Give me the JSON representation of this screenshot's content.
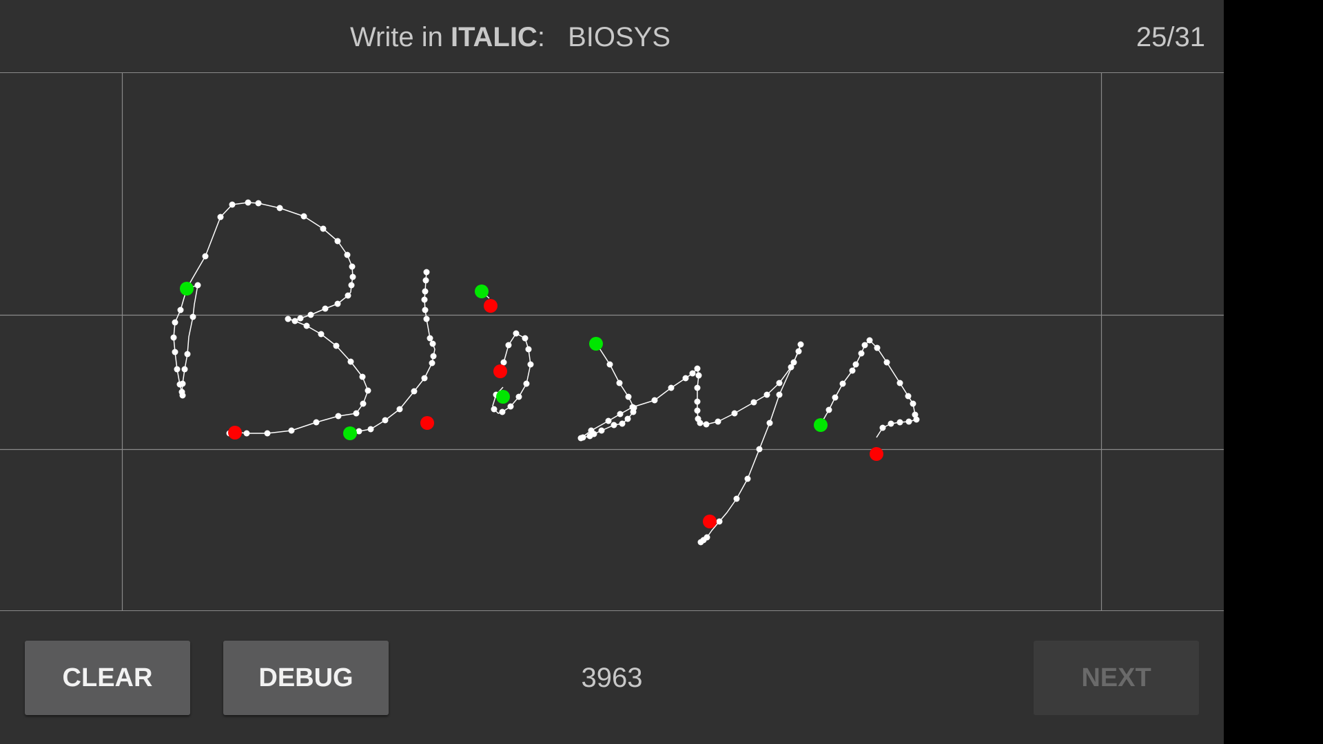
{
  "header": {
    "prompt_prefix": "Write in",
    "style_name": "ITALIC",
    "separator": ":",
    "target_word": "BIOSYS",
    "progress_label": "25/31"
  },
  "footer": {
    "clear_label": "CLEAR",
    "debug_label": "DEBUG",
    "score": "3963",
    "next_label": "NEXT",
    "next_enabled": false
  },
  "colors": {
    "background": "#303030",
    "guide_lines": "#8a8a8a",
    "ink": "#ffffff",
    "stroke_start": "#00e600",
    "stroke_end": "#ff0000",
    "button": "#5a5a5b",
    "button_disabled": "#3b3b3b"
  }
}
